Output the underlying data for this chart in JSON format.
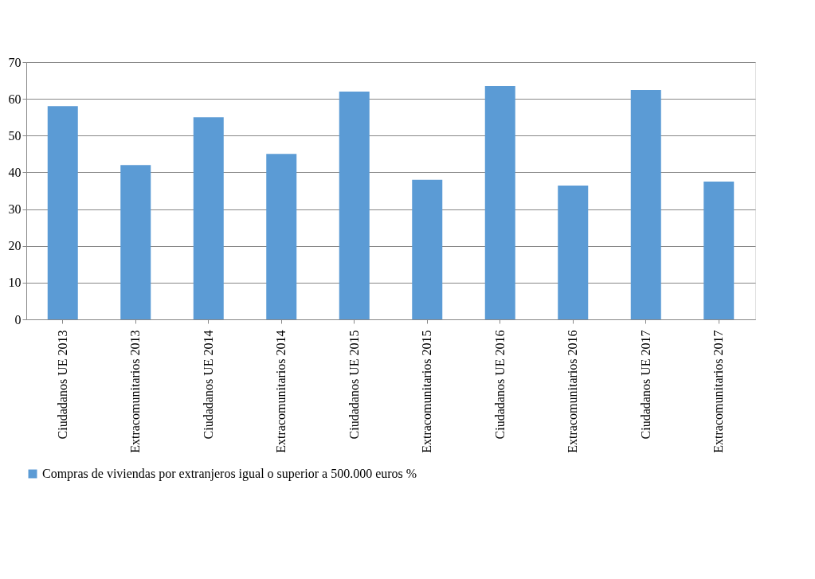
{
  "chart_data": {
    "type": "bar",
    "categories": [
      "Ciudadanos UE 2013",
      "Extracomunitarios 2013",
      "Ciudadanos UE 2014",
      "Extracomunitarios 2014",
      "Ciudadanos UE 2015",
      "Extracomunitarios 2015",
      "Ciudadanos UE 2016",
      "Extracomunitarios 2016",
      "Ciudadanos UE 2017",
      "Extracomunitarios 2017"
    ],
    "series": [
      {
        "name": "Compras de viviendas por extranjeros igual o superior a 500.000 euros %",
        "color": "#5b9bd5",
        "values": [
          58,
          42,
          55,
          45,
          62,
          38,
          63.5,
          36.4,
          62.4,
          37.5
        ]
      }
    ],
    "ylim": [
      0,
      70
    ],
    "yticks": [
      0,
      10,
      20,
      30,
      40,
      50,
      60,
      70
    ],
    "grid": "y",
    "legend": "bottom"
  }
}
